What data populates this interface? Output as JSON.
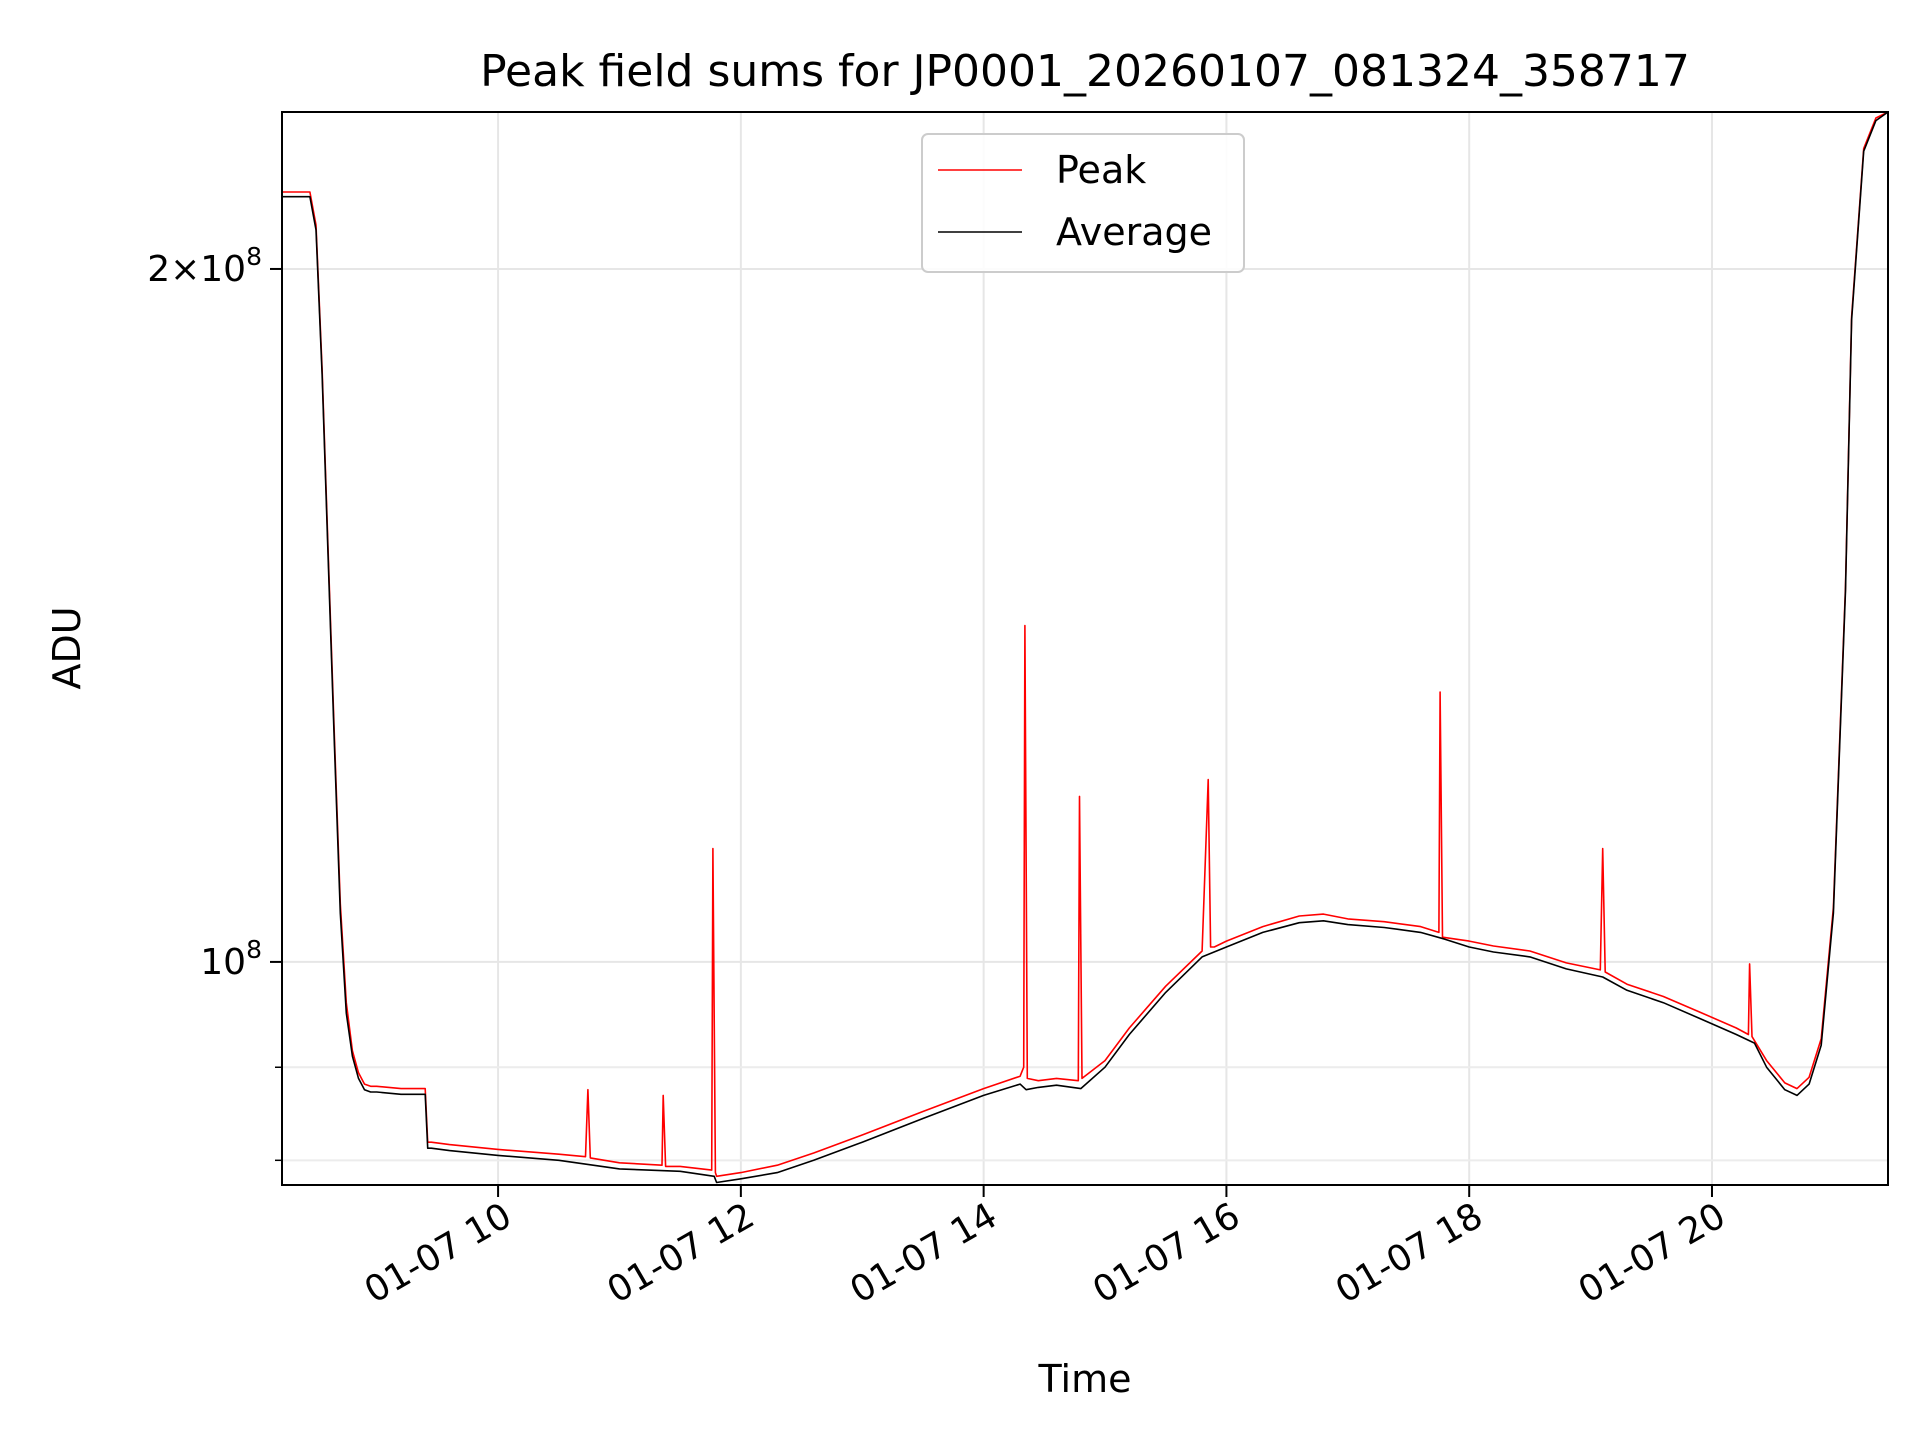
{
  "chart_data": {
    "type": "line",
    "title": "Peak field sums for JP0001_20260107_081324_358717",
    "xlabel": "Time",
    "ylabel": "ADU",
    "x_axis": "time",
    "x_unit": "hours on 01-07",
    "xlim": [
      8.22,
      21.45
    ],
    "y_scale": "log",
    "ylim": [
      80000000,
      234000000
    ],
    "grid": true,
    "legend": {
      "position": "top-center"
    },
    "x_ticks": [
      {
        "value": 10,
        "label": "01-07 10"
      },
      {
        "value": 12,
        "label": "01-07 12"
      },
      {
        "value": 14,
        "label": "01-07 14"
      },
      {
        "value": 16,
        "label": "01-07 16"
      },
      {
        "value": 18,
        "label": "01-07 18"
      },
      {
        "value": 20,
        "label": "01-07 20"
      }
    ],
    "y_major_ticks": [
      {
        "value": 100000000,
        "mantissa": "",
        "exponent": "8"
      },
      {
        "value": 200000000,
        "mantissa": "2",
        "exponent": "8"
      }
    ],
    "y_minor_ticks": [
      82000000,
      90000000
    ],
    "series": [
      {
        "name": "Average",
        "color": "#000000",
        "x": [
          8.22,
          8.3,
          8.45,
          8.5,
          8.55,
          8.6,
          8.65,
          8.7,
          8.75,
          8.8,
          8.85,
          8.9,
          8.95,
          9.0,
          9.2,
          9.4,
          9.42,
          9.45,
          9.6,
          10.0,
          10.5,
          11.0,
          11.5,
          11.78,
          11.8,
          12.0,
          12.3,
          12.6,
          13.0,
          13.5,
          14.0,
          14.3,
          14.35,
          14.45,
          14.6,
          14.8,
          15.0,
          15.2,
          15.5,
          15.8,
          16.0,
          16.3,
          16.6,
          16.8,
          17.0,
          17.3,
          17.6,
          17.8,
          18.0,
          18.2,
          18.5,
          18.8,
          19.1,
          19.3,
          19.6,
          19.9,
          20.2,
          20.35,
          20.45,
          20.6,
          20.7,
          20.8,
          20.9,
          21.0,
          21.1,
          21.15,
          21.25,
          21.35,
          21.45
        ],
        "y": [
          215000000,
          215000000,
          215000000,
          208000000,
          180000000,
          150000000,
          125000000,
          105000000,
          95000000,
          91000000,
          89000000,
          88000000,
          87800000,
          87800000,
          87600000,
          87600000,
          83000000,
          83000000,
          82800000,
          82400000,
          82000000,
          81300000,
          81100000,
          80700000,
          80200000,
          80500000,
          81000000,
          82000000,
          83500000,
          85500000,
          87500000,
          88500000,
          88000000,
          88200000,
          88400000,
          88100000,
          90000000,
          93000000,
          97000000,
          100500000,
          101500000,
          103000000,
          104000000,
          104200000,
          103800000,
          103500000,
          103000000,
          102300000,
          101500000,
          101000000,
          100500000,
          99300000,
          98500000,
          97200000,
          96000000,
          94500000,
          93000000,
          92200000,
          90000000,
          88000000,
          87500000,
          88500000,
          92000000,
          105000000,
          145000000,
          190000000,
          225000000,
          232000000,
          234000000
        ]
      },
      {
        "name": "Peak",
        "color": "#ff0000",
        "x": [
          8.22,
          8.45,
          8.5,
          8.55,
          8.6,
          8.65,
          8.7,
          8.75,
          8.8,
          8.85,
          8.9,
          8.95,
          9.0,
          9.2,
          9.4,
          9.42,
          9.45,
          9.6,
          10.0,
          10.5,
          10.72,
          10.74,
          10.76,
          11.0,
          11.35,
          11.36,
          11.38,
          11.5,
          11.76,
          11.77,
          11.79,
          11.8,
          12.0,
          12.3,
          12.6,
          13.0,
          13.5,
          14.0,
          14.3,
          14.33,
          14.34,
          14.36,
          14.45,
          14.6,
          14.78,
          14.79,
          14.81,
          15.0,
          15.2,
          15.5,
          15.8,
          15.85,
          15.87,
          15.9,
          16.0,
          16.3,
          16.6,
          16.8,
          17.0,
          17.3,
          17.6,
          17.75,
          17.76,
          17.78,
          18.0,
          18.2,
          18.5,
          18.8,
          19.08,
          19.1,
          19.12,
          19.3,
          19.6,
          19.9,
          20.2,
          20.3,
          20.31,
          20.33,
          20.45,
          20.6,
          20.7,
          20.8,
          20.9,
          21.0,
          21.1,
          21.15,
          21.25,
          21.35,
          21.45
        ],
        "y": [
          216000000,
          216000000,
          209000000,
          181000000,
          151000000,
          126000000,
          106000000,
          96000000,
          91500000,
          89500000,
          88500000,
          88300000,
          88300000,
          88100000,
          88100000,
          83500000,
          83500000,
          83300000,
          82900000,
          82500000,
          82300000,
          88000000,
          82200000,
          81800000,
          81600000,
          87500000,
          81500000,
          81500000,
          81200000,
          112000000,
          81000000,
          80700000,
          81000000,
          81600000,
          82600000,
          84100000,
          86100000,
          88100000,
          89200000,
          90000000,
          140000000,
          89000000,
          88800000,
          89000000,
          88800000,
          118000000,
          89000000,
          90600000,
          93600000,
          97600000,
          101100000,
          120000000,
          101500000,
          101500000,
          102100000,
          103600000,
          104700000,
          104900000,
          104400000,
          104100000,
          103600000,
          103000000,
          131000000,
          102500000,
          102100000,
          101600000,
          101100000,
          99900000,
          99200000,
          112000000,
          99000000,
          97800000,
          96600000,
          95100000,
          93600000,
          93000000,
          99800000,
          92800000,
          90600000,
          88600000,
          88100000,
          89100000,
          92600000,
          105600000,
          145600000,
          190600000,
          225600000,
          232600000,
          234000000
        ]
      }
    ]
  }
}
